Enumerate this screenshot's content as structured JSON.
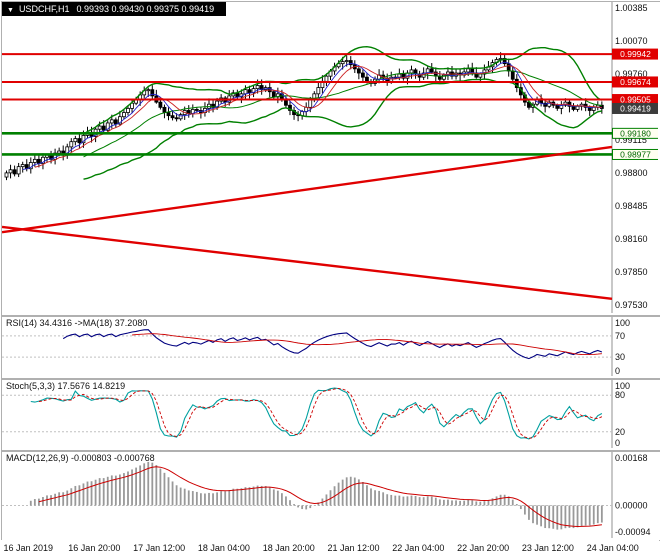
{
  "titlebar": {
    "dropdown_icon": "▼",
    "symbol": "USDCHF,H1",
    "ohlc_text": "0.99393 0.99430 0.99375 0.99419"
  },
  "main_axis": {
    "ticks": [
      "1.00385",
      "1.00070",
      "0.99760",
      "0.99445",
      "0.99115",
      "0.98800",
      "0.98485",
      "0.98160",
      "0.97850",
      "0.97530"
    ]
  },
  "levels": {
    "resistance": [
      {
        "price": 0.99942,
        "label": "0.99942"
      },
      {
        "price": 0.99674,
        "label": "0.99674"
      },
      {
        "price": 0.99505,
        "label": "0.99505"
      }
    ],
    "support": [
      {
        "price": 0.9918,
        "label": "0.99180"
      },
      {
        "price": 0.98977,
        "label": "0.98977"
      }
    ],
    "current": {
      "price": 0.99419,
      "label": "0.99419"
    }
  },
  "trendlines": [
    {
      "name": "ascending",
      "price_start": 0.9823,
      "price_end": 0.9905
    },
    {
      "name": "descending",
      "price_start": 0.9828,
      "price_end": 0.9759
    }
  ],
  "rsi": {
    "label": "RSI(14) 34.4316 ->MA(18) 37.2080",
    "period": 14,
    "ma_period": 18,
    "value": 34.4316,
    "ma_value": 37.208,
    "ticks": [
      {
        "v": 100,
        "t": "100"
      },
      {
        "v": 70,
        "t": "70"
      },
      {
        "v": 30,
        "t": "30"
      },
      {
        "v": 0,
        "t": "0"
      }
    ],
    "levels": [
      70,
      30
    ]
  },
  "stoch": {
    "label": "Stoch(5,3,3) 17.5676 14.8219",
    "k_period": 5,
    "d_period": 3,
    "slowing": 3,
    "k_value": 17.5676,
    "d_value": 14.8219,
    "ticks": [
      {
        "v": 100,
        "t": "100"
      },
      {
        "v": 80,
        "t": "80"
      },
      {
        "v": 20,
        "t": "20"
      },
      {
        "v": 0,
        "t": "0"
      }
    ],
    "levels": [
      80,
      20
    ]
  },
  "macd": {
    "label": "MACD(12,26,9) -0.000803 -0.000768",
    "fast": 12,
    "slow": 26,
    "signal": 9,
    "macd_value": -0.000803,
    "signal_value": -0.000768,
    "ticks": [
      {
        "v": 0.00168,
        "t": "0.00168"
      },
      {
        "v": 0,
        "t": "0.00000"
      },
      {
        "v": -0.00094,
        "t": "-0.00094"
      }
    ],
    "range_top": 0.00168,
    "range_bottom": -0.00094
  },
  "time_axis": {
    "bars_per_label": 16,
    "labels": [
      "16 Jan 2019",
      "16 Jan 20:00",
      "17 Jan 12:00",
      "18 Jan 04:00",
      "18 Jan 20:00",
      "21 Jan 12:00",
      "22 Jan 04:00",
      "22 Jan 20:00",
      "23 Jan 12:00",
      "24 Jan 04:00"
    ]
  },
  "colors": {
    "up_candle": "#ffffff",
    "down_candle": "#000000",
    "outline": "#000000",
    "bollinger": "#008000",
    "support_line": "#008000",
    "resistance_line": "#e00000",
    "trend_line": "#e00000",
    "ma_fast": "#2222cc",
    "ma_slow": "#cc2222",
    "rsi_line": "#000080",
    "rsi_ma": "#cc0000",
    "stoch_k": "#00a0a0",
    "stoch_d": "#cc0000",
    "macd_hist": "#999999",
    "macd_signal": "#cc0000",
    "current_badge_bg": "#3c3c3c",
    "level_dotted": "#c0c0c0"
  },
  "chart_data": {
    "type": "candlestick",
    "title": "USDCHF,H1",
    "price_axis": {
      "top": 1.00385,
      "bottom": 0.9753
    },
    "bollinger": {
      "period": 20,
      "deviation": 2
    },
    "ma_fast": 5,
    "ma_slow": 8,
    "last_bar": {
      "open": 0.99393,
      "high": 0.9943,
      "low": 0.99375,
      "close": 0.99419
    },
    "horizontal_levels": {
      "resistance": [
        0.99942,
        0.99674,
        0.99505
      ],
      "support": [
        0.9918,
        0.98977
      ]
    },
    "closes": [
      0.988,
      0.9883,
      0.9879,
      0.9886,
      0.9888,
      0.9884,
      0.989,
      0.9893,
      0.9889,
      0.9895,
      0.9897,
      0.9893,
      0.9899,
      0.9901,
      0.9897,
      0.9905,
      0.991,
      0.9913,
      0.9909,
      0.9916,
      0.9919,
      0.9915,
      0.9922,
      0.9925,
      0.9921,
      0.9928,
      0.9931,
      0.9927,
      0.9934,
      0.9938,
      0.9942,
      0.9947,
      0.995,
      0.9955,
      0.9959,
      0.996,
      0.9954,
      0.9948,
      0.9943,
      0.9938,
      0.9935,
      0.9933,
      0.9932,
      0.9936,
      0.994,
      0.9937,
      0.9941,
      0.994,
      0.9938,
      0.9942,
      0.9946,
      0.9943,
      0.9949,
      0.9952,
      0.9948,
      0.9954,
      0.9957,
      0.9953,
      0.9956,
      0.996,
      0.9957,
      0.9961,
      0.9964,
      0.996,
      0.9962,
      0.9958,
      0.9953,
      0.9956,
      0.995,
      0.9945,
      0.994,
      0.9936,
      0.9935,
      0.9939,
      0.9943,
      0.995,
      0.9956,
      0.9962,
      0.9968,
      0.9973,
      0.9978,
      0.9982,
      0.9985,
      0.9987,
      0.9988,
      0.9984,
      0.998,
      0.9976,
      0.9972,
      0.9968,
      0.9966,
      0.997,
      0.9974,
      0.9971,
      0.9968,
      0.9972,
      0.9972,
      0.9975,
      0.9971,
      0.9976,
      0.9979,
      0.9975,
      0.9972,
      0.9976,
      0.998,
      0.9977,
      0.9973,
      0.997,
      0.9974,
      0.9977,
      0.9973,
      0.9976,
      0.9974,
      0.9977,
      0.998,
      0.9976,
      0.9972,
      0.9975,
      0.9979,
      0.9982,
      0.9986,
      0.9989,
      0.999,
      0.9985,
      0.9978,
      0.997,
      0.9962,
      0.9955,
      0.9948,
      0.9943,
      0.9946,
      0.995,
      0.9947,
      0.9944,
      0.9948,
      0.9945,
      0.9942,
      0.9945,
      0.9948,
      0.9944,
      0.9941,
      0.9944,
      0.9946,
      0.9943,
      0.994,
      0.9943,
      0.9945,
      0.99419
    ],
    "panels": [
      {
        "type": "line",
        "name": "RSI",
        "params": [
          14
        ],
        "last_value": 34.4316,
        "ma_last_value": 37.208,
        "ylim": [
          0,
          100
        ],
        "levels": [
          30,
          70
        ]
      },
      {
        "type": "line",
        "name": "Stochastic",
        "params": [
          5,
          3,
          3
        ],
        "k_last": 17.5676,
        "d_last": 14.8219,
        "ylim": [
          0,
          100
        ],
        "levels": [
          20,
          80
        ]
      },
      {
        "type": "bar",
        "name": "MACD",
        "params": [
          12,
          26,
          9
        ],
        "macd_last": -0.000803,
        "signal_last": -0.000768,
        "ylim": [
          -0.00094,
          0.00168
        ]
      }
    ]
  }
}
